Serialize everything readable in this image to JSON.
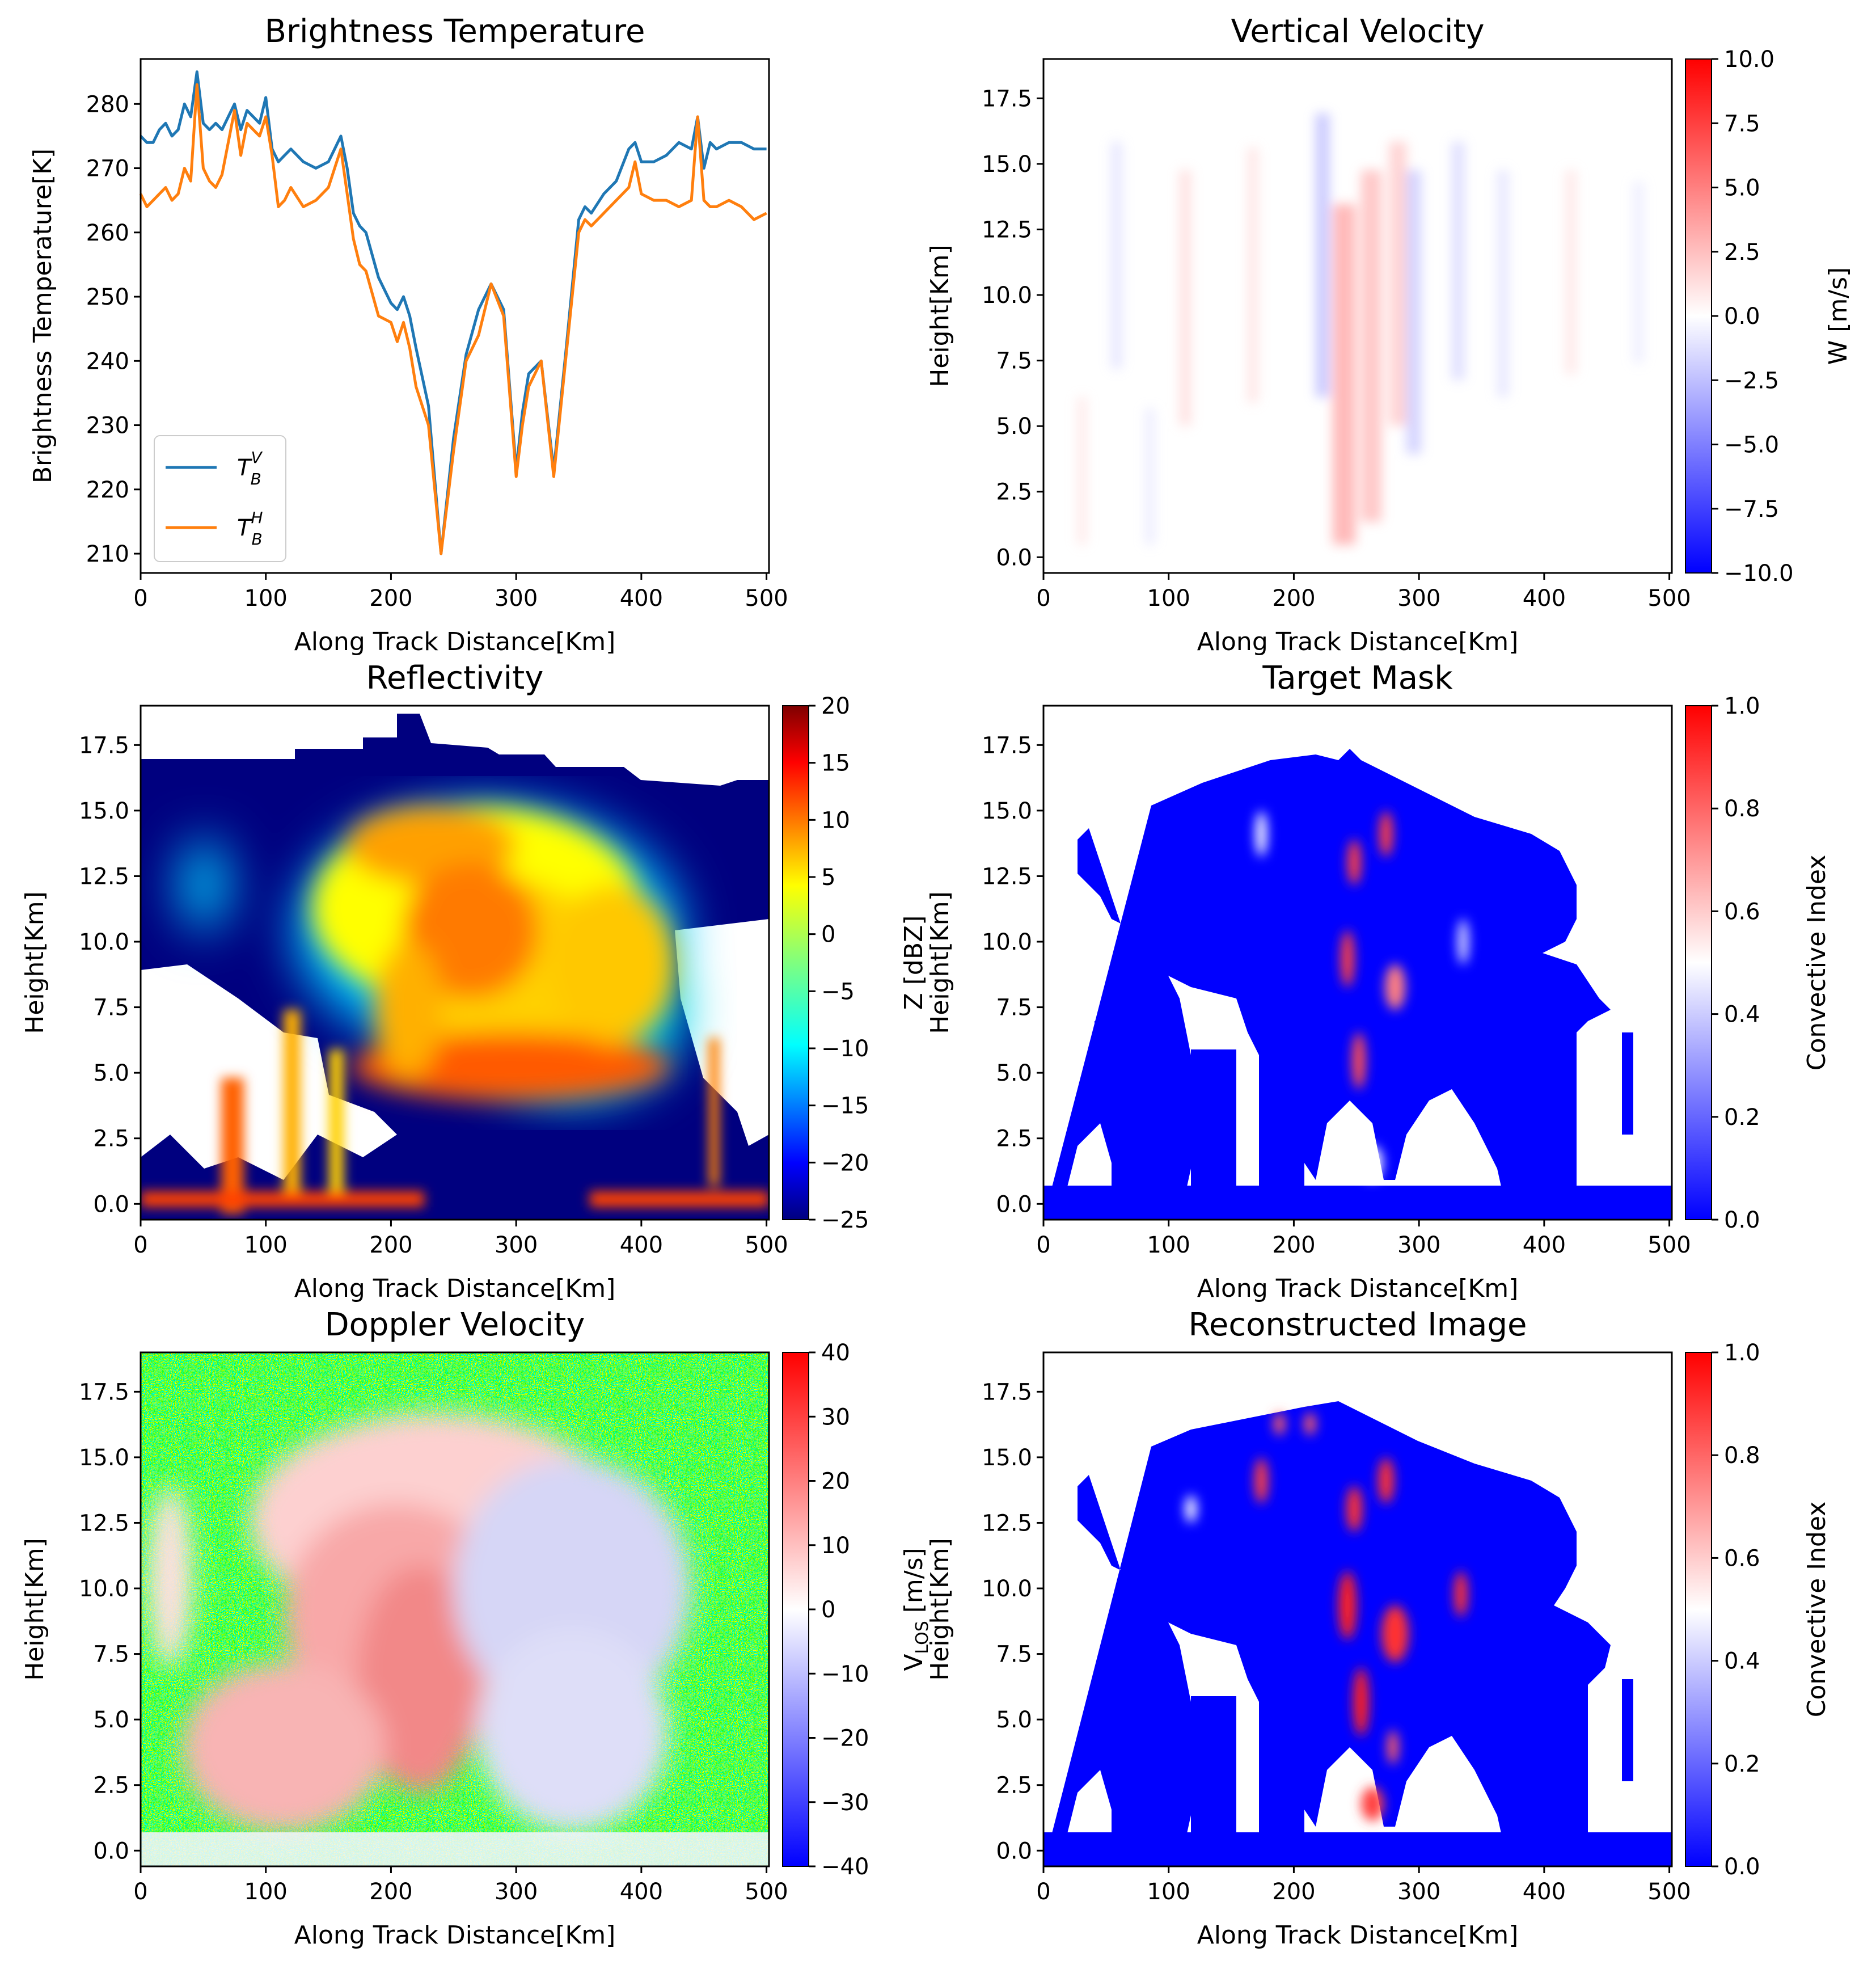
{
  "colors": {
    "tbv": "#1f77b4",
    "tbh": "#ff7f0e",
    "navy": "#00007f",
    "blue": "#0000ff",
    "red": "#ff0000"
  },
  "chart_data": [
    {
      "id": "bt",
      "type": "line",
      "title": "Brightness Temperature",
      "xlabel": "Along Track Distance[Km]",
      "ylabel": "Brightness Temperature[K]",
      "xlim": [
        0,
        502
      ],
      "ylim": [
        207,
        287
      ],
      "xticks": [
        0,
        100,
        200,
        300,
        400,
        500
      ],
      "yticks": [
        210,
        220,
        230,
        240,
        250,
        260,
        270,
        280
      ],
      "legend_position": "lower-left",
      "legend": [
        {
          "symbol": "T",
          "sub": "B",
          "sup": "V"
        },
        {
          "symbol": "T",
          "sub": "B",
          "sup": "H"
        }
      ],
      "series": [
        {
          "name": "T_B^V",
          "color": "#1f77b4",
          "x": [
            0,
            5,
            10,
            15,
            20,
            25,
            30,
            35,
            40,
            45,
            50,
            55,
            60,
            65,
            70,
            75,
            80,
            85,
            90,
            95,
            100,
            105,
            110,
            115,
            120,
            130,
            140,
            150,
            155,
            160,
            165,
            170,
            175,
            180,
            190,
            200,
            205,
            210,
            215,
            220,
            230,
            240,
            250,
            260,
            270,
            280,
            290,
            300,
            305,
            310,
            320,
            330,
            340,
            350,
            355,
            360,
            370,
            380,
            390,
            395,
            400,
            410,
            420,
            430,
            440,
            445,
            450,
            455,
            460,
            470,
            480,
            490,
            500
          ],
          "y": [
            275,
            274,
            274,
            276,
            277,
            275,
            276,
            280,
            278,
            285,
            277,
            276,
            277,
            276,
            278,
            280,
            276,
            279,
            278,
            277,
            281,
            273,
            271,
            272,
            273,
            271,
            270,
            271,
            273,
            275,
            270,
            263,
            261,
            260,
            253,
            249,
            248,
            250,
            247,
            242,
            233,
            210,
            228,
            241,
            248,
            252,
            248,
            223,
            232,
            238,
            240,
            223,
            242,
            262,
            264,
            263,
            266,
            268,
            273,
            274,
            271,
            271,
            272,
            274,
            273,
            278,
            270,
            274,
            273,
            274,
            274,
            273,
            273
          ]
        },
        {
          "name": "T_B^H",
          "color": "#ff7f0e",
          "x": [
            0,
            5,
            10,
            15,
            20,
            25,
            30,
            35,
            40,
            45,
            50,
            55,
            60,
            65,
            70,
            75,
            80,
            85,
            90,
            95,
            100,
            105,
            110,
            115,
            120,
            130,
            140,
            150,
            155,
            160,
            165,
            170,
            175,
            180,
            190,
            200,
            205,
            210,
            215,
            220,
            230,
            240,
            250,
            260,
            270,
            280,
            290,
            300,
            305,
            310,
            320,
            330,
            340,
            350,
            355,
            360,
            370,
            380,
            390,
            395,
            400,
            410,
            420,
            430,
            440,
            445,
            450,
            455,
            460,
            470,
            480,
            490,
            500
          ],
          "y": [
            266,
            264,
            265,
            266,
            267,
            265,
            266,
            270,
            268,
            283,
            270,
            268,
            267,
            269,
            274,
            279,
            272,
            277,
            276,
            275,
            278,
            272,
            264,
            265,
            267,
            264,
            265,
            267,
            270,
            273,
            266,
            259,
            255,
            254,
            247,
            246,
            243,
            246,
            242,
            236,
            230,
            210,
            226,
            240,
            244,
            252,
            247,
            222,
            230,
            236,
            240,
            222,
            241,
            260,
            262,
            261,
            263,
            265,
            267,
            271,
            266,
            265,
            265,
            264,
            265,
            278,
            265,
            264,
            264,
            265,
            264,
            262,
            263
          ]
        }
      ]
    },
    {
      "id": "vv",
      "type": "heatmap",
      "title": "Vertical Velocity",
      "xlabel": "Along Track Distance[Km]",
      "ylabel": "Height[Km]",
      "xlim": [
        0,
        502
      ],
      "ylim": [
        -0.6,
        19.0
      ],
      "xticks": [
        0,
        100,
        200,
        300,
        400,
        500
      ],
      "yticks": [
        "0.0",
        "2.5",
        "5.0",
        "7.5",
        "10.0",
        "12.5",
        "15.0",
        "17.5"
      ],
      "colorbar": {
        "label": "W [m/s]",
        "range": [
          -10,
          10
        ],
        "colormap": "bwr",
        "ticks": [
          "10.0",
          "7.5",
          "5.0",
          "2.5",
          "0.0",
          "−2.5",
          "−5.0",
          "−7.5",
          "−10.0"
        ]
      }
    },
    {
      "id": "refl",
      "type": "heatmap",
      "title": "Reflectivity",
      "xlabel": "Along Track Distance[Km]",
      "ylabel": "Height[Km]",
      "xlim": [
        0,
        502
      ],
      "ylim": [
        -0.6,
        19.0
      ],
      "xticks": [
        0,
        100,
        200,
        300,
        400,
        500
      ],
      "yticks": [
        "0.0",
        "2.5",
        "5.0",
        "7.5",
        "10.0",
        "12.5",
        "15.0",
        "17.5"
      ],
      "colorbar": {
        "label": "Z [dBZ]",
        "range": [
          -25,
          20
        ],
        "colormap": "jet",
        "ticks": [
          "20",
          "15",
          "10",
          "5",
          "0",
          "−5",
          "−10",
          "−15",
          "−20",
          "−25"
        ]
      }
    },
    {
      "id": "mask",
      "type": "heatmap",
      "title": "Target Mask",
      "xlabel": "Along Track Distance[Km]",
      "ylabel": "Height[Km]",
      "xlim": [
        0,
        502
      ],
      "ylim": [
        -0.6,
        19.0
      ],
      "xticks": [
        0,
        100,
        200,
        300,
        400,
        500
      ],
      "yticks": [
        "0.0",
        "2.5",
        "5.0",
        "7.5",
        "10.0",
        "12.5",
        "15.0",
        "17.5"
      ],
      "colorbar": {
        "label": "Convective Index",
        "range": [
          0,
          1
        ],
        "colormap": "bwr",
        "ticks": [
          "1.0",
          "0.8",
          "0.6",
          "0.4",
          "0.2",
          "0.0"
        ]
      }
    },
    {
      "id": "dop",
      "type": "heatmap",
      "title": "Doppler Velocity",
      "xlabel": "Along Track Distance[Km]",
      "ylabel": "Height[Km]",
      "xlim": [
        0,
        502
      ],
      "ylim": [
        -0.6,
        19.0
      ],
      "xticks": [
        0,
        100,
        200,
        300,
        400,
        500
      ],
      "yticks": [
        "0.0",
        "2.5",
        "5.0",
        "7.5",
        "10.0",
        "12.5",
        "15.0",
        "17.5"
      ],
      "colorbar": {
        "label": "V_LOS [m/s]",
        "label_main": "V",
        "label_sub": "LOS",
        "label_unit": " [m/s]",
        "range": [
          -40,
          40
        ],
        "colormap": "bwr",
        "ticks": [
          "40",
          "30",
          "20",
          "10",
          "0",
          "−10",
          "−20",
          "−30",
          "−40"
        ]
      }
    },
    {
      "id": "recon",
      "type": "heatmap",
      "title": "Reconstructed Image",
      "xlabel": "Along Track Distance[Km]",
      "ylabel": "Height[Km]",
      "xlim": [
        0,
        502
      ],
      "ylim": [
        -0.6,
        19.0
      ],
      "xticks": [
        0,
        100,
        200,
        300,
        400,
        500
      ],
      "yticks": [
        "0.0",
        "2.5",
        "5.0",
        "7.5",
        "10.0",
        "12.5",
        "15.0",
        "17.5"
      ],
      "colorbar": {
        "label": "Convective Index",
        "range": [
          0,
          1
        ],
        "colormap": "bwr",
        "ticks": [
          "1.0",
          "0.8",
          "0.6",
          "0.4",
          "0.2",
          "0.0"
        ]
      }
    }
  ]
}
